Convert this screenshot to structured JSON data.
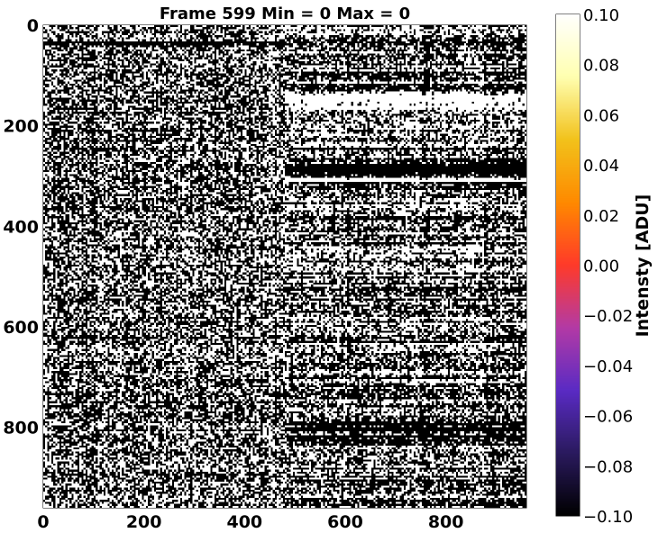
{
  "chart_data": {
    "type": "heatmap",
    "title": "Frame 599 Min = 0 Max = 0",
    "x_ticks": [
      0,
      200,
      400,
      600,
      800
    ],
    "y_ticks": [
      0,
      200,
      400,
      600,
      800
    ],
    "xlim": [
      0,
      960
    ],
    "ylim": [
      960,
      0
    ],
    "colorbar": {
      "label": "Intensty [ADU]",
      "min": -0.1,
      "max": 0.1,
      "ticks": [
        "−0.10",
        "−0.08",
        "−0.06",
        "−0.04",
        "−0.02",
        "0.00",
        "0.02",
        "0.04",
        "0.06",
        "0.08",
        "0.10"
      ],
      "colormap": [
        "#000000",
        "#2a1a5e",
        "#5a2bc4",
        "#b33aa6",
        "#ff3a2a",
        "#ff8a00",
        "#f2c21b",
        "#ffffb0",
        "#ffffff"
      ]
    },
    "data_description": "Binary black/white noise pattern; brighter horizontal bands near rows 120-160; right half (x>480) shows stronger horizontal striping"
  }
}
